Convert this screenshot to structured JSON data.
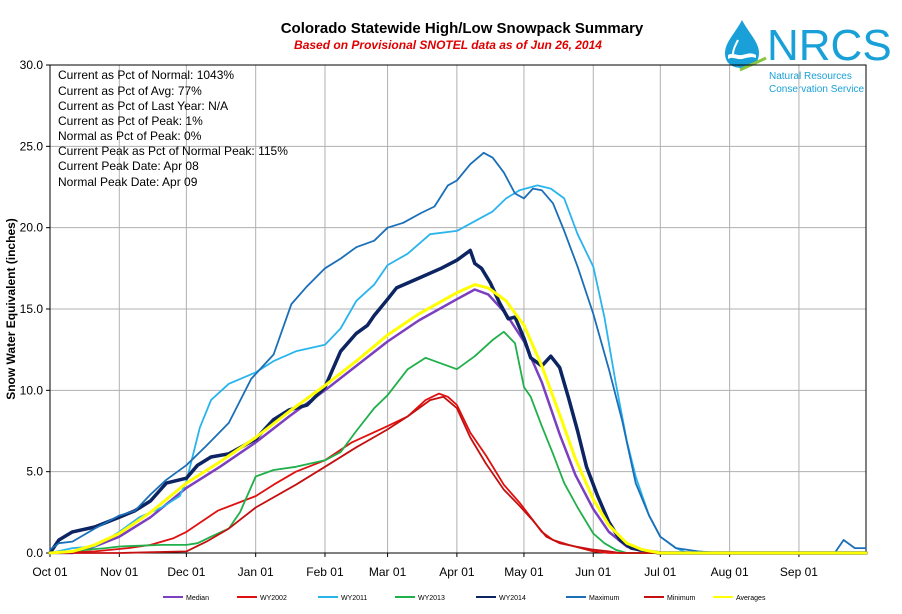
{
  "logo": {
    "text": "NRCS",
    "line1": "Natural Resources",
    "line2": "Conservation Service",
    "color": "#1aa0d8"
  },
  "stats": [
    "Current  as Pct of Normal: 1043%",
    "Current  as Pct of Avg: 77%",
    "Current  as Pct of Last Year: N/A",
    "Current  as Pct of Peak: 1%",
    "Normal  as Pct of Peak: 0%",
    "Current  Peak as Pct of Normal  Peak: 115%",
    "Current  Peak Date:  Apr 08",
    "Normal  Peak Date: Apr 09"
  ],
  "chart_data": {
    "type": "line",
    "title": "Colorado Statewide High/Low Snowpack Summary",
    "subtitle": "Based on Provisional SNOTEL data as of Jun 26, 2014",
    "xlabel": "",
    "ylabel": "Snow Water Equivalent (inches)",
    "ylim": [
      0,
      30
    ],
    "xlim": [
      0,
      365
    ],
    "x_unit": "days after Oct 01",
    "yticks": [
      "0.0",
      "5.0",
      "10.0",
      "15.0",
      "20.0",
      "25.0",
      "30.0"
    ],
    "xticks": [
      {
        "label": "Oct 01",
        "x": 0
      },
      {
        "label": "Nov 01",
        "x": 31
      },
      {
        "label": "Dec 01",
        "x": 61
      },
      {
        "label": "Jan 01",
        "x": 92
      },
      {
        "label": "Feb 01",
        "x": 123
      },
      {
        "label": "Mar 01",
        "x": 151
      },
      {
        "label": "Apr 01",
        "x": 182
      },
      {
        "label": "May 01",
        "x": 212
      },
      {
        "label": "Jun 01",
        "x": 243
      },
      {
        "label": "Jul 01",
        "x": 273
      },
      {
        "label": "Aug 01",
        "x": 304
      },
      {
        "label": "Sep 01",
        "x": 335
      }
    ],
    "grid": true,
    "legend_position": "bottom",
    "series": [
      {
        "name": "Median",
        "color": "#7b3fbf",
        "width": 2.5,
        "values": [
          [
            0,
            0
          ],
          [
            10,
            0
          ],
          [
            20,
            0.4
          ],
          [
            31,
            1.0
          ],
          [
            45,
            2.2
          ],
          [
            61,
            4.0
          ],
          [
            76,
            5.3
          ],
          [
            92,
            6.8
          ],
          [
            107,
            8.4
          ],
          [
            123,
            10.0
          ],
          [
            137,
            11.5
          ],
          [
            151,
            13.0
          ],
          [
            165,
            14.3
          ],
          [
            182,
            15.6
          ],
          [
            190,
            16.2
          ],
          [
            196,
            15.9
          ],
          [
            204,
            14.7
          ],
          [
            212,
            13.0
          ],
          [
            220,
            10.5
          ],
          [
            228,
            7.3
          ],
          [
            235,
            4.8
          ],
          [
            243,
            2.7
          ],
          [
            250,
            1.3
          ],
          [
            258,
            0.4
          ],
          [
            265,
            0.1
          ],
          [
            273,
            0
          ],
          [
            365,
            0
          ]
        ]
      },
      {
        "name": "WY2002",
        "color": "#e01010",
        "width": 1.8,
        "values": [
          [
            0,
            0
          ],
          [
            20,
            0.1
          ],
          [
            35,
            0.3
          ],
          [
            45,
            0.5
          ],
          [
            55,
            0.9
          ],
          [
            61,
            1.3
          ],
          [
            75,
            2.6
          ],
          [
            92,
            3.5
          ],
          [
            100,
            4.2
          ],
          [
            110,
            5.0
          ],
          [
            123,
            5.7
          ],
          [
            135,
            6.8
          ],
          [
            151,
            7.8
          ],
          [
            160,
            8.4
          ],
          [
            168,
            9.4
          ],
          [
            174,
            9.8
          ],
          [
            178,
            9.6
          ],
          [
            182,
            9.1
          ],
          [
            188,
            7.4
          ],
          [
            195,
            6.0
          ],
          [
            203,
            4.2
          ],
          [
            210,
            3.1
          ],
          [
            215,
            2.2
          ],
          [
            220,
            1.3
          ],
          [
            225,
            0.8
          ],
          [
            232,
            0.5
          ],
          [
            243,
            0.1
          ],
          [
            250,
            0
          ],
          [
            365,
            0
          ]
        ]
      },
      {
        "name": "WY2011",
        "color": "#2ab4ee",
        "width": 1.8,
        "values": [
          [
            0,
            0
          ],
          [
            10,
            0.3
          ],
          [
            20,
            0.4
          ],
          [
            31,
            1.3
          ],
          [
            40,
            2.2
          ],
          [
            50,
            2.8
          ],
          [
            58,
            3.5
          ],
          [
            61,
            4.4
          ],
          [
            67,
            7.7
          ],
          [
            72,
            9.4
          ],
          [
            80,
            10.4
          ],
          [
            92,
            11.1
          ],
          [
            100,
            11.8
          ],
          [
            110,
            12.4
          ],
          [
            123,
            12.8
          ],
          [
            130,
            13.8
          ],
          [
            137,
            15.5
          ],
          [
            145,
            16.5
          ],
          [
            151,
            17.7
          ],
          [
            160,
            18.4
          ],
          [
            170,
            19.6
          ],
          [
            182,
            19.8
          ],
          [
            190,
            20.4
          ],
          [
            198,
            21.0
          ],
          [
            204,
            21.8
          ],
          [
            210,
            22.3
          ],
          [
            218,
            22.6
          ],
          [
            224,
            22.4
          ],
          [
            230,
            21.8
          ],
          [
            236,
            19.6
          ],
          [
            243,
            17.6
          ],
          [
            248,
            14.5
          ],
          [
            253,
            10.5
          ],
          [
            258,
            6.9
          ],
          [
            262,
            4.7
          ],
          [
            268,
            2.3
          ],
          [
            273,
            1.0
          ],
          [
            280,
            0.3
          ],
          [
            285,
            0
          ],
          [
            365,
            0
          ]
        ]
      },
      {
        "name": "WY2013",
        "color": "#1fb04a",
        "width": 1.8,
        "values": [
          [
            0,
            0
          ],
          [
            25,
            0.3
          ],
          [
            31,
            0.4
          ],
          [
            50,
            0.5
          ],
          [
            61,
            0.5
          ],
          [
            66,
            0.6
          ],
          [
            72,
            1.0
          ],
          [
            80,
            1.5
          ],
          [
            85,
            2.5
          ],
          [
            92,
            4.7
          ],
          [
            100,
            5.1
          ],
          [
            110,
            5.3
          ],
          [
            123,
            5.7
          ],
          [
            130,
            6.2
          ],
          [
            137,
            7.5
          ],
          [
            145,
            8.9
          ],
          [
            151,
            9.7
          ],
          [
            160,
            11.3
          ],
          [
            168,
            12.0
          ],
          [
            174,
            11.7
          ],
          [
            182,
            11.3
          ],
          [
            190,
            12.1
          ],
          [
            198,
            13.1
          ],
          [
            203,
            13.6
          ],
          [
            208,
            12.9
          ],
          [
            212,
            10.2
          ],
          [
            215,
            9.6
          ],
          [
            220,
            7.8
          ],
          [
            225,
            6.1
          ],
          [
            230,
            4.3
          ],
          [
            236,
            2.8
          ],
          [
            243,
            1.2
          ],
          [
            248,
            0.6
          ],
          [
            253,
            0.2
          ],
          [
            258,
            0
          ],
          [
            365,
            0
          ]
        ]
      },
      {
        "name": "WY2014",
        "color": "#0c2461",
        "width": 3.5,
        "values": [
          [
            0,
            0
          ],
          [
            4,
            0.8
          ],
          [
            10,
            1.3
          ],
          [
            20,
            1.6
          ],
          [
            31,
            2.2
          ],
          [
            38,
            2.6
          ],
          [
            45,
            3.2
          ],
          [
            52,
            4.3
          ],
          [
            61,
            4.6
          ],
          [
            66,
            5.4
          ],
          [
            72,
            5.9
          ],
          [
            80,
            6.1
          ],
          [
            92,
            7.0
          ],
          [
            100,
            8.2
          ],
          [
            107,
            8.8
          ],
          [
            115,
            9.1
          ],
          [
            123,
            10.2
          ],
          [
            130,
            12.4
          ],
          [
            137,
            13.5
          ],
          [
            142,
            14.0
          ],
          [
            145,
            14.6
          ],
          [
            148,
            15.1
          ],
          [
            151,
            15.6
          ],
          [
            155,
            16.3
          ],
          [
            165,
            16.9
          ],
          [
            175,
            17.5
          ],
          [
            182,
            18.0
          ],
          [
            188,
            18.6
          ],
          [
            190,
            17.8
          ],
          [
            193,
            17.5
          ],
          [
            197,
            16.6
          ],
          [
            201,
            15.4
          ],
          [
            205,
            14.4
          ],
          [
            208,
            14.5
          ],
          [
            212,
            13.2
          ],
          [
            215,
            12.0
          ],
          [
            220,
            11.5
          ],
          [
            224,
            12.1
          ],
          [
            228,
            11.4
          ],
          [
            232,
            9.5
          ],
          [
            236,
            7.5
          ],
          [
            240,
            5.3
          ],
          [
            245,
            3.5
          ],
          [
            250,
            1.9
          ],
          [
            255,
            0.8
          ],
          [
            260,
            0.3
          ],
          [
            268,
            0.1
          ],
          [
            273,
            0
          ],
          [
            365,
            0
          ]
        ]
      },
      {
        "name": "Maximum",
        "color": "#1a6fb8",
        "width": 1.8,
        "values": [
          [
            0,
            0.2
          ],
          [
            4,
            0.6
          ],
          [
            10,
            0.7
          ],
          [
            20,
            1.5
          ],
          [
            31,
            2.3
          ],
          [
            38,
            2.6
          ],
          [
            45,
            3.6
          ],
          [
            52,
            4.5
          ],
          [
            61,
            5.4
          ],
          [
            70,
            6.6
          ],
          [
            80,
            8.0
          ],
          [
            90,
            10.7
          ],
          [
            100,
            12.2
          ],
          [
            108,
            15.3
          ],
          [
            115,
            16.4
          ],
          [
            123,
            17.5
          ],
          [
            130,
            18.1
          ],
          [
            137,
            18.8
          ],
          [
            145,
            19.2
          ],
          [
            151,
            20.0
          ],
          [
            158,
            20.3
          ],
          [
            166,
            20.9
          ],
          [
            172,
            21.3
          ],
          [
            178,
            22.6
          ],
          [
            182,
            22.9
          ],
          [
            188,
            23.9
          ],
          [
            194,
            24.6
          ],
          [
            198,
            24.3
          ],
          [
            203,
            23.4
          ],
          [
            208,
            22.1
          ],
          [
            212,
            21.8
          ],
          [
            216,
            22.4
          ],
          [
            220,
            22.3
          ],
          [
            225,
            21.5
          ],
          [
            230,
            19.8
          ],
          [
            236,
            17.6
          ],
          [
            243,
            14.7
          ],
          [
            250,
            11.3
          ],
          [
            256,
            8.1
          ],
          [
            262,
            4.3
          ],
          [
            268,
            2.3
          ],
          [
            273,
            1.0
          ],
          [
            280,
            0.3
          ],
          [
            290,
            0.1
          ],
          [
            300,
            0
          ],
          [
            345,
            0
          ],
          [
            351,
            0
          ],
          [
            355,
            0.8
          ],
          [
            360,
            0.3
          ],
          [
            365,
            0.3
          ]
        ]
      },
      {
        "name": "Minimum",
        "color": "#c41010",
        "width": 1.8,
        "values": [
          [
            0,
            0
          ],
          [
            31,
            0
          ],
          [
            61,
            0.1
          ],
          [
            70,
            0.7
          ],
          [
            80,
            1.5
          ],
          [
            92,
            2.8
          ],
          [
            110,
            4.2
          ],
          [
            123,
            5.3
          ],
          [
            137,
            6.5
          ],
          [
            151,
            7.6
          ],
          [
            160,
            8.4
          ],
          [
            170,
            9.4
          ],
          [
            176,
            9.6
          ],
          [
            182,
            8.9
          ],
          [
            188,
            7.1
          ],
          [
            195,
            5.5
          ],
          [
            203,
            3.9
          ],
          [
            210,
            2.9
          ],
          [
            216,
            2.0
          ],
          [
            222,
            1.0
          ],
          [
            228,
            0.6
          ],
          [
            235,
            0.4
          ],
          [
            243,
            0.2
          ],
          [
            250,
            0.1
          ],
          [
            255,
            0
          ],
          [
            365,
            0
          ]
        ]
      },
      {
        "name": "Averages",
        "color": "#ffff00",
        "width": 3,
        "values": [
          [
            0,
            0
          ],
          [
            10,
            0.1
          ],
          [
            20,
            0.5
          ],
          [
            31,
            1.2
          ],
          [
            45,
            2.5
          ],
          [
            61,
            4.3
          ],
          [
            76,
            5.6
          ],
          [
            92,
            7.1
          ],
          [
            107,
            8.7
          ],
          [
            123,
            10.3
          ],
          [
            137,
            11.8
          ],
          [
            151,
            13.4
          ],
          [
            165,
            14.7
          ],
          [
            182,
            16.0
          ],
          [
            190,
            16.5
          ],
          [
            196,
            16.3
          ],
          [
            204,
            15.5
          ],
          [
            212,
            14.0
          ],
          [
            220,
            11.5
          ],
          [
            228,
            8.5
          ],
          [
            235,
            5.8
          ],
          [
            243,
            3.3
          ],
          [
            250,
            1.7
          ],
          [
            258,
            0.6
          ],
          [
            265,
            0.2
          ],
          [
            273,
            0
          ],
          [
            365,
            0
          ]
        ]
      }
    ]
  }
}
